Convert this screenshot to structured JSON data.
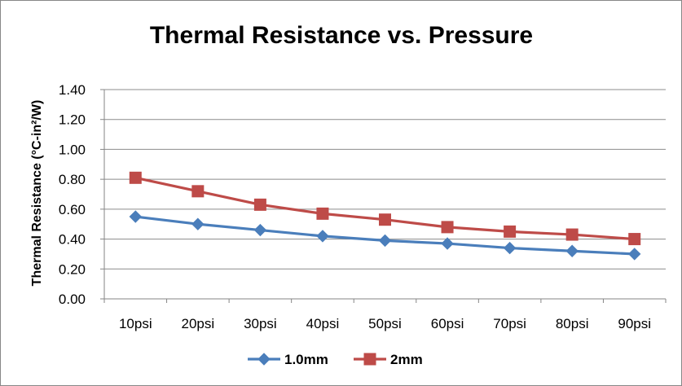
{
  "chart_data": {
    "type": "line",
    "title": "Thermal Resistance vs. Pressure",
    "xlabel": "",
    "ylabel": "Thermal Resistance (°C-in²/W)",
    "categories": [
      "10psi",
      "20psi",
      "30psi",
      "40psi",
      "50psi",
      "60psi",
      "70psi",
      "80psi",
      "90psi"
    ],
    "ylim": [
      0,
      1.4
    ],
    "yticks": [
      "0.00",
      "0.20",
      "0.40",
      "0.60",
      "0.80",
      "1.00",
      "1.20",
      "1.40"
    ],
    "grid": true,
    "legend_position": "bottom",
    "series": [
      {
        "name": "1.0mm",
        "color": "#4A7EBB",
        "marker": "diamond",
        "values": [
          0.55,
          0.5,
          0.46,
          0.42,
          0.39,
          0.37,
          0.34,
          0.32,
          0.3
        ]
      },
      {
        "name": "2mm",
        "color": "#BE4B48",
        "marker": "square",
        "values": [
          0.81,
          0.72,
          0.63,
          0.57,
          0.53,
          0.48,
          0.45,
          0.43,
          0.4
        ]
      }
    ]
  },
  "colors": {
    "grid": "#8C8C8C",
    "frame": "#878787"
  }
}
